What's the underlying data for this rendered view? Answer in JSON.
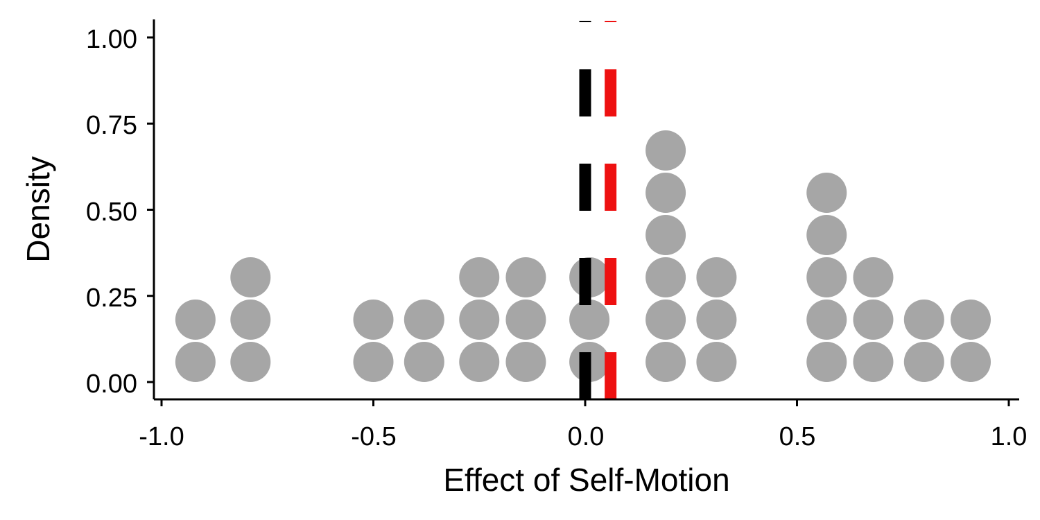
{
  "chart_data": {
    "type": "dotplot",
    "xlabel": "Effect of Self-Motion",
    "ylabel": "Density",
    "xlim": [
      -1.0,
      1.0
    ],
    "ylim": [
      0.0,
      1.0
    ],
    "x_ticks": [
      "-1.0",
      "-0.5",
      "0.0",
      "0.5",
      "1.0"
    ],
    "y_ticks": [
      "0.00",
      "0.25",
      "0.50",
      "0.75",
      "1.00"
    ],
    "grid": false,
    "dot_color": "#a6a6a6",
    "stacks": [
      {
        "x": -0.92,
        "count": 2
      },
      {
        "x": -0.79,
        "count": 3
      },
      {
        "x": -0.5,
        "count": 2
      },
      {
        "x": -0.38,
        "count": 2
      },
      {
        "x": -0.25,
        "count": 3
      },
      {
        "x": -0.14,
        "count": 3
      },
      {
        "x": 0.01,
        "count": 3
      },
      {
        "x": 0.19,
        "count": 6
      },
      {
        "x": 0.31,
        "count": 3
      },
      {
        "x": 0.57,
        "count": 5
      },
      {
        "x": 0.68,
        "count": 3
      },
      {
        "x": 0.8,
        "count": 2
      },
      {
        "x": 0.91,
        "count": 2
      }
    ],
    "reference_lines": [
      {
        "x": 0.0,
        "color": "#000000",
        "style": "dashed"
      },
      {
        "x": 0.06,
        "color": "#ee1111",
        "style": "dashed"
      }
    ]
  }
}
